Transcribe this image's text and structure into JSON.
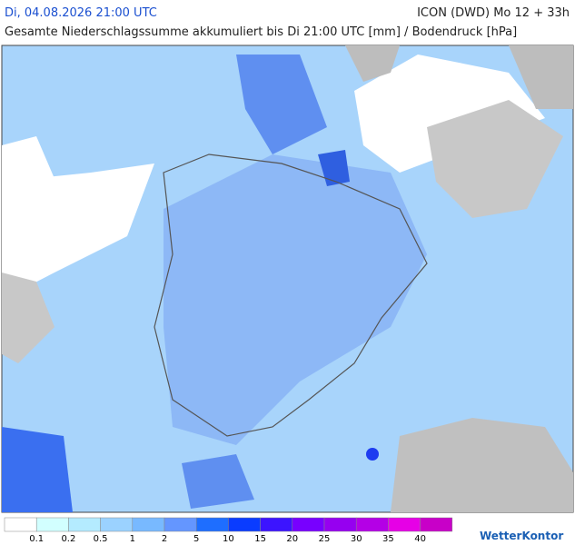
{
  "header": {
    "date": "Di, 04.08.2026 21:00 UTC",
    "model": "ICON (DWD) Mo 12 + 33h",
    "subtitle": "Gesamte Niederschlagssumme akkumuliert bis Di 21:00 UTC [mm] / Bodendruck [hPa]"
  },
  "legend": {
    "labels": [
      "0.1",
      "0.2",
      "0.5",
      "1",
      "2",
      "5",
      "10",
      "15",
      "20",
      "25",
      "30",
      "35",
      "40"
    ],
    "colors": [
      "#ffffff",
      "#d2ffff",
      "#b4ebff",
      "#9bd2ff",
      "#78b9ff",
      "#6496ff",
      "#1e6eff",
      "#0a3cff",
      "#3c14ff",
      "#7800ff",
      "#9600f0",
      "#b400e6",
      "#e600e6",
      "#c800c8"
    ]
  },
  "brand": "WetterKontor"
}
